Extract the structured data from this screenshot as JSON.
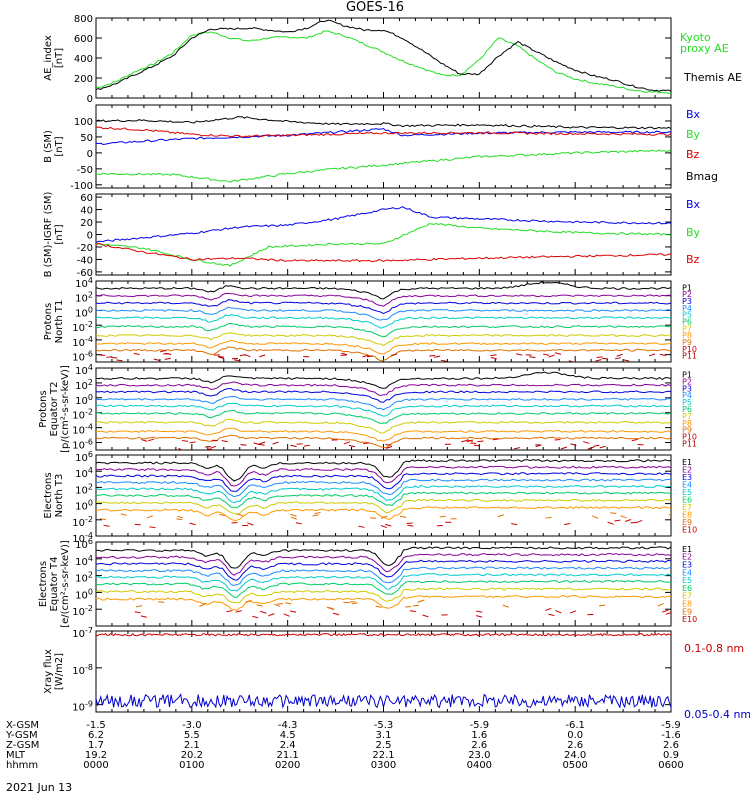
{
  "title": "GOES-16",
  "colors": {
    "black": "#000000",
    "blue": "#0000ee",
    "green": "#22dd22",
    "red": "#dd0000",
    "p_colors": [
      "#000000",
      "#880099",
      "#0000dd",
      "#1a8cff",
      "#00cccc",
      "#00cc66",
      "#cccc00",
      "#ff9900",
      "#e07000",
      "#cc0000",
      "#aa0000"
    ],
    "e_colors": [
      "#000000",
      "#880099",
      "#0000dd",
      "#1a8cff",
      "#00cccc",
      "#00cc66",
      "#cccc00",
      "#ff9900",
      "#e07000",
      "#cc0000"
    ]
  },
  "chart_data": [
    {
      "type": "line",
      "ylabel": [
        "AE_index",
        "[nT]"
      ],
      "ylim": [
        0,
        800
      ],
      "yticks": [
        "0",
        "200",
        "400",
        "600",
        "800"
      ],
      "series": [
        {
          "name": "Kyoto proxy AE",
          "label_lines": [
            "Kyoto",
            "proxy AE"
          ],
          "color": "#22dd22",
          "x": [
            0,
            0.2,
            0.4,
            0.6,
            0.8,
            1.0,
            1.2,
            1.4,
            1.6,
            1.8,
            2.0,
            2.2,
            2.4,
            2.6,
            2.8,
            3.0,
            3.2,
            3.4,
            3.6,
            3.8,
            4.0,
            4.2,
            4.4,
            4.6,
            4.8,
            5.0,
            5.2,
            5.4,
            5.6,
            5.8,
            6.0
          ],
          "values": [
            100,
            160,
            260,
            340,
            450,
            630,
            660,
            600,
            570,
            600,
            610,
            600,
            670,
            620,
            540,
            460,
            370,
            300,
            230,
            230,
            380,
            600,
            520,
            380,
            260,
            190,
            150,
            120,
            80,
            60,
            55
          ]
        },
        {
          "name": "Themis AE",
          "label_lines": [
            "Themis AE"
          ],
          "color": "#000000",
          "x": [
            0,
            0.2,
            0.4,
            0.6,
            0.8,
            1.0,
            1.2,
            1.4,
            1.6,
            1.8,
            2.0,
            2.2,
            2.4,
            2.6,
            2.8,
            3.0,
            3.2,
            3.4,
            3.6,
            3.8,
            4.0,
            4.2,
            4.4,
            4.6,
            4.8,
            5.0,
            5.2,
            5.4,
            5.6,
            5.8,
            6.0
          ],
          "values": [
            80,
            140,
            230,
            320,
            420,
            600,
            690,
            690,
            700,
            680,
            660,
            700,
            780,
            720,
            680,
            680,
            600,
            480,
            350,
            240,
            240,
            420,
            560,
            460,
            360,
            280,
            220,
            180,
            120,
            80,
            70
          ]
        }
      ]
    },
    {
      "type": "line",
      "ylabel": [
        "B (SM)",
        "[nT]"
      ],
      "ylim": [
        -110,
        150
      ],
      "yticks": [
        "-100",
        "-50",
        "0",
        "50",
        "100"
      ],
      "series": [
        {
          "name": "Bx",
          "color": "#0000ee",
          "x": [
            0,
            1,
            2,
            3,
            3.2,
            4,
            5,
            6
          ],
          "values": [
            28,
            45,
            55,
            75,
            55,
            62,
            65,
            65
          ]
        },
        {
          "name": "By",
          "color": "#22dd22",
          "x": [
            0,
            0.8,
            1.4,
            2,
            2.5,
            3,
            3.5,
            4,
            5,
            6
          ],
          "values": [
            -65,
            -68,
            -90,
            -65,
            -50,
            -38,
            -25,
            -12,
            0,
            8
          ]
        },
        {
          "name": "Bz",
          "color": "#dd0000",
          "x": [
            0,
            0.5,
            1,
            1.5,
            2,
            3,
            4,
            5,
            6
          ],
          "values": [
            80,
            72,
            58,
            52,
            55,
            62,
            63,
            60,
            58
          ]
        },
        {
          "name": "Bmag",
          "color": "#000000",
          "x": [
            0,
            0.5,
            1,
            1.5,
            2,
            2.5,
            3,
            3.2,
            4,
            5,
            6
          ],
          "values": [
            100,
            102,
            95,
            112,
            98,
            90,
            92,
            85,
            88,
            80,
            78
          ]
        }
      ]
    },
    {
      "type": "line",
      "ylabel": [
        "B (SM)-IGRF (SM)",
        "[nT]"
      ],
      "ylim": [
        -65,
        65
      ],
      "yticks": [
        "-60",
        "-40",
        "-20",
        "0",
        "20",
        "40",
        "60"
      ],
      "series": [
        {
          "name": "Bx",
          "color": "#0000ee",
          "x": [
            0,
            0.5,
            1,
            1.5,
            2,
            2.5,
            3,
            3.2,
            3.5,
            4,
            5,
            6
          ],
          "values": [
            -12,
            -5,
            2,
            12,
            15,
            25,
            40,
            44,
            28,
            25,
            20,
            18
          ]
        },
        {
          "name": "By",
          "color": "#22dd22",
          "x": [
            0,
            0.5,
            1,
            1.4,
            1.8,
            2.5,
            3,
            3.3,
            3.5,
            4,
            5,
            6
          ],
          "values": [
            -15,
            -22,
            -40,
            -50,
            -20,
            -15,
            -15,
            5,
            18,
            10,
            3,
            0
          ]
        },
        {
          "name": "Bz",
          "color": "#dd0000",
          "x": [
            0,
            0.5,
            1,
            1.5,
            2,
            3,
            4,
            5,
            6
          ],
          "values": [
            -15,
            -28,
            -40,
            -38,
            -42,
            -42,
            -38,
            -35,
            -32
          ]
        }
      ]
    },
    {
      "type": "line",
      "ylabel": [
        "Protons",
        "North T1"
      ],
      "ylim": [
        -7,
        4
      ],
      "log": true,
      "yticks": [
        "10$-6",
        "10$-4",
        "10$-2",
        "10$0",
        "10$2",
        "10$4"
      ],
      "tickvals": [
        -6,
        -4,
        -2,
        0,
        2,
        4
      ],
      "channels": [
        "P1",
        "P2",
        "P3",
        "P4",
        "P5",
        "P6",
        "P7",
        "P8",
        "P9",
        "P10",
        "P11"
      ],
      "base": [
        3.0,
        2.0,
        1.0,
        0.0,
        -1.0,
        -2.2,
        -3.4,
        -4.5,
        -5.4,
        -6.0,
        -6.5
      ]
    },
    {
      "type": "line",
      "ylabel": [
        "Protons",
        "Equator T2",
        "[p/(cm²-s-sr-keV)]"
      ],
      "ylim": [
        -7,
        4
      ],
      "log": true,
      "yticks": [
        "10$-6",
        "10$-4",
        "10$-2",
        "10$0",
        "10$2",
        "10$4",
        "10$6"
      ],
      "tickvals": [
        -6,
        -4,
        -2,
        0,
        2,
        4,
        6
      ],
      "channels": [
        "P1",
        "P2",
        "P3",
        "P4",
        "P5",
        "P6",
        "P7",
        "P8",
        "P9",
        "P10",
        "P11"
      ],
      "base": [
        2.6,
        1.7,
        0.8,
        -0.2,
        -1.1,
        -2.1,
        -3.3,
        -4.5,
        -5.4,
        -6.0,
        -6.5
      ]
    },
    {
      "type": "line",
      "ylabel": [
        "Electrons",
        "North T3"
      ],
      "ylim": [
        -4,
        6
      ],
      "log": true,
      "yticks": [
        "10$-4",
        "10$-2",
        "10$0",
        "10$2",
        "10$4",
        "10$6"
      ],
      "tickvals": [
        -4,
        -2,
        0,
        2,
        4,
        6
      ],
      "channels": [
        "E1",
        "E2",
        "E3",
        "E4",
        "E5",
        "E6",
        "E7",
        "E8",
        "E9",
        "E10"
      ],
      "base": [
        5.0,
        4.2,
        3.4,
        2.6,
        1.8,
        1.0,
        0.1,
        -0.8,
        -1.5,
        -2.5
      ]
    },
    {
      "type": "line",
      "ylabel": [
        "Electrons",
        "Equator T4",
        "[e/(cm²-s-sr-keV)]"
      ],
      "ylim": [
        -4,
        6
      ],
      "log": true,
      "yticks": [
        "10$-2",
        "10$0",
        "10$2",
        "10$4",
        "10$6"
      ],
      "tickvals": [
        -2,
        0,
        2,
        4,
        6
      ],
      "channels": [
        "E1",
        "E2",
        "E3",
        "E4",
        "E5",
        "E6",
        "E7",
        "E8",
        "E9",
        "E10"
      ],
      "base": [
        5.0,
        4.2,
        3.4,
        2.6,
        1.8,
        1.0,
        0.1,
        -0.8,
        -1.5,
        -2.5
      ]
    },
    {
      "type": "line",
      "ylabel": [
        "Xray flux",
        "[W/m2]"
      ],
      "ylim": [
        -9.2,
        -7
      ],
      "log": true,
      "yticks": [
        "10$-9",
        "10$-8",
        "10$-7"
      ],
      "tickvals": [
        -9,
        -8,
        -7
      ],
      "series": [
        {
          "name": "0.1-0.8 nm",
          "color": "#cc0000",
          "level": -7.1
        },
        {
          "name": "0.05-0.4 nm",
          "color": "#0000cc",
          "level": -8.9
        }
      ]
    }
  ],
  "x_axis": {
    "row_labels": [
      "X-GSM",
      "Y-GSM",
      "Z-GSM",
      "MLT",
      "hhmm"
    ],
    "columns": [
      [
        "-1.5",
        "6.2",
        "1.7",
        "19.2",
        "0000"
      ],
      [
        "-3.0",
        "5.5",
        "2.1",
        "20.2",
        "0100"
      ],
      [
        "-4.3",
        "4.5",
        "2.4",
        "21.1",
        "0200"
      ],
      [
        "-5.3",
        "3.1",
        "2.5",
        "22.1",
        "0300"
      ],
      [
        "-5.9",
        "1.6",
        "2.6",
        "23.0",
        "0400"
      ],
      [
        "-6.1",
        "0.0",
        "2.6",
        "24.0",
        "0500"
      ],
      [
        "-5.9",
        "-1.6",
        "2.6",
        "0.9",
        "0600"
      ]
    ],
    "date": "2021 Jun 13"
  }
}
